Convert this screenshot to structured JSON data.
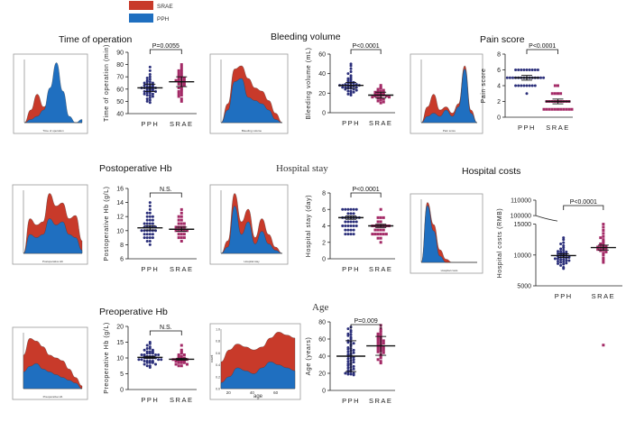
{
  "legend": {
    "items": [
      {
        "label": "SRAE",
        "color": "#c83a2a"
      },
      {
        "label": "PPH",
        "color": "#1f6fc0"
      }
    ]
  },
  "colors": {
    "srae": "#c83a2a",
    "pph": "#1f6fc0",
    "pph_dot": "#2b2f7a",
    "srae_dot": "#a32a66"
  },
  "chart_data": [
    {
      "id": "time",
      "type": "scatter",
      "title": "Time of operation",
      "ylabel": "Time of operation (min)",
      "categories": [
        "PPH",
        "SRAE"
      ],
      "ylim": [
        40,
        90
      ],
      "yticks": [
        40,
        50,
        60,
        70,
        80,
        90
      ],
      "pvalue": "P=0.0055",
      "series": [
        {
          "name": "PPH",
          "values": [
            78,
            75,
            72,
            70,
            69,
            68,
            67,
            66,
            66,
            65,
            65,
            64,
            64,
            63,
            63,
            62,
            62,
            62,
            61,
            61,
            61,
            60,
            60,
            60,
            59,
            59,
            59,
            58,
            58,
            57,
            57,
            56,
            56,
            55,
            55,
            54,
            53,
            52,
            51,
            50,
            49
          ],
          "mean": 61,
          "err": 3
        },
        {
          "name": "SRAE",
          "values": [
            80,
            78,
            76,
            75,
            74,
            73,
            72,
            71,
            70,
            70,
            69,
            68,
            68,
            67,
            67,
            66,
            66,
            65,
            64,
            64,
            63,
            62,
            61,
            60,
            59,
            58,
            57,
            56,
            55,
            54,
            52,
            50
          ],
          "mean": 66,
          "err": 4
        }
      ]
    },
    {
      "id": "bleeding",
      "type": "scatter",
      "title": "Bleeding volume",
      "ylabel": "Bleeding volume (mL)",
      "categories": [
        "PPH",
        "SRAE"
      ],
      "ylim": [
        0,
        60
      ],
      "yticks": [
        0,
        20,
        40,
        60
      ],
      "pvalue": "P<0.0001",
      "series": [
        {
          "name": "PPH",
          "values": [
            50,
            48,
            45,
            42,
            40,
            38,
            36,
            35,
            34,
            33,
            32,
            31,
            31,
            30,
            30,
            30,
            29,
            29,
            28,
            28,
            28,
            27,
            27,
            27,
            26,
            26,
            26,
            25,
            25,
            24,
            24,
            23,
            22,
            22,
            21,
            20,
            19,
            18
          ],
          "mean": 28,
          "err": 3
        },
        {
          "name": "SRAE",
          "values": [
            28,
            26,
            25,
            24,
            23,
            22,
            22,
            21,
            21,
            20,
            20,
            19,
            19,
            18,
            18,
            18,
            17,
            17,
            16,
            16,
            15,
            15,
            14,
            13,
            12,
            11,
            10
          ],
          "mean": 18,
          "err": 3
        }
      ]
    },
    {
      "id": "pain",
      "type": "scatter",
      "title": "Pain score",
      "ylabel": "Pain score",
      "categories": [
        "PPH",
        "SRAE"
      ],
      "ylim": [
        0,
        8
      ],
      "yticks": [
        0,
        2,
        4,
        6,
        8
      ],
      "pvalue": "P<0.0001",
      "series": [
        {
          "name": "PPH",
          "values": [
            6,
            6,
            6,
            6,
            6,
            6,
            6,
            6,
            6,
            5,
            5,
            5,
            5,
            5,
            5,
            5,
            5,
            5,
            5,
            5,
            5,
            5,
            5,
            4,
            4,
            4,
            4,
            4,
            4,
            4,
            4,
            3
          ],
          "mean": 5,
          "err": 0.3
        },
        {
          "name": "SRAE",
          "values": [
            4,
            4,
            3,
            3,
            3,
            3,
            2,
            2,
            2,
            2,
            2,
            2,
            2,
            2,
            2,
            1,
            1,
            1,
            1,
            1,
            1,
            1,
            1,
            1,
            1,
            1
          ],
          "mean": 2,
          "err": 0.3
        }
      ]
    },
    {
      "id": "posthb",
      "type": "scatter",
      "title": "Postoperative Hb",
      "ylabel": "Postoperative Hb (g/L)",
      "categories": [
        "PPH",
        "SRAE"
      ],
      "ylim": [
        6,
        16
      ],
      "yticks": [
        6,
        8,
        10,
        12,
        14,
        16
      ],
      "pvalue": "N.S.",
      "series": [
        {
          "name": "PPH",
          "values": [
            14,
            13.5,
            13,
            12.5,
            12.5,
            12,
            12,
            12,
            11.5,
            11.5,
            11.5,
            11,
            11,
            11,
            11,
            10.5,
            10.5,
            10.5,
            10.5,
            10.5,
            10,
            10,
            10,
            10,
            10,
            10,
            9.5,
            9.5,
            9.5,
            9.5,
            9,
            9,
            9,
            9,
            8.5,
            8.5,
            8
          ],
          "mean": 10.4,
          "err": 0.3
        },
        {
          "name": "SRAE",
          "values": [
            13,
            12.5,
            12,
            12,
            11.5,
            11.5,
            11,
            11,
            11,
            10.5,
            10.5,
            10.5,
            10.5,
            10,
            10,
            10,
            10,
            10,
            9.5,
            9.5,
            9.5,
            9,
            9,
            9,
            8.5
          ],
          "mean": 10.2,
          "err": 0.3
        }
      ]
    },
    {
      "id": "stay",
      "type": "scatter",
      "title": "Hospital stay",
      "ylabel": "Hospital stay (day)",
      "categories": [
        "PPH",
        "SRAE"
      ],
      "ylim": [
        0,
        8
      ],
      "yticks": [
        0,
        2,
        4,
        6,
        8
      ],
      "pvalue": "P<0.0001",
      "series": [
        {
          "name": "PPH",
          "values": [
            6,
            6,
            6,
            6,
            6,
            6,
            5.5,
            5.5,
            5.5,
            5,
            5,
            5,
            5,
            5,
            5,
            5,
            4.5,
            4.5,
            4.5,
            4.5,
            4.5,
            4,
            4,
            4,
            4,
            4,
            4,
            3.5,
            3.5,
            3.5,
            3.5,
            3,
            3,
            3,
            3
          ],
          "mean": 5,
          "err": 0.2
        },
        {
          "name": "SRAE",
          "values": [
            6,
            5,
            5,
            5,
            4.5,
            4.5,
            4,
            4,
            4,
            4,
            4,
            4,
            4,
            3.5,
            3.5,
            3.5,
            3.5,
            3,
            3,
            3,
            3,
            3,
            3,
            2.5,
            2.5,
            2
          ],
          "mean": 4,
          "err": 0.2
        }
      ]
    },
    {
      "id": "costs",
      "type": "scatter",
      "title": "Hospital costs",
      "ylabel": "Hospital costs (RMB)",
      "categories": [
        "PPH",
        "SRAE"
      ],
      "ylim": [
        5000,
        110000
      ],
      "yticks": [
        5000,
        10000,
        15000,
        100000,
        110000
      ],
      "axis_break": [
        15000,
        100000
      ],
      "pvalue": "P<0.0001",
      "series": [
        {
          "name": "PPH",
          "values": [
            12800,
            12500,
            12000,
            11800,
            11500,
            11200,
            11000,
            10800,
            10600,
            10500,
            10400,
            10300,
            10200,
            10100,
            10000,
            9900,
            9800,
            9700,
            9600,
            9500,
            9400,
            9300,
            9200,
            9100,
            9000,
            8900,
            8800,
            8700,
            8600,
            8500,
            8300,
            8000,
            7800,
            9800,
            10200,
            9600,
            9400,
            10600,
            9100
          ],
          "mean": 9900,
          "err": 300
        },
        {
          "name": "SRAE",
          "values": [
            16000,
            15000,
            14500,
            14000,
            13500,
            13000,
            12800,
            12500,
            12200,
            12000,
            11800,
            11600,
            11500,
            11400,
            11300,
            11200,
            11100,
            11000,
            10900,
            10800,
            10700,
            10500,
            10300,
            10000,
            9500,
            9200,
            8800
          ],
          "mean": 11200,
          "err": 400
        }
      ]
    },
    {
      "id": "prehb",
      "type": "scatter",
      "title": "Preoperative Hb",
      "ylabel": "Preoperative Hb (g/L)",
      "categories": [
        "PPH",
        "SRAE"
      ],
      "ylim": [
        0,
        20
      ],
      "yticks": [
        0,
        5,
        10,
        15,
        20
      ],
      "pvalue": "N.S.",
      "series": [
        {
          "name": "PPH",
          "values": [
            15,
            14.5,
            14,
            13.5,
            13,
            13,
            12.5,
            12.5,
            12,
            12,
            12,
            11.5,
            11.5,
            11.5,
            11,
            11,
            11,
            11,
            10.5,
            10.5,
            10.5,
            10.5,
            10,
            10,
            10,
            10,
            10,
            9.5,
            9.5,
            9.5,
            9.5,
            9,
            9,
            9,
            9,
            8.5,
            8.5,
            8.5,
            8,
            8,
            7.5,
            7.5,
            7
          ],
          "mean": 10.2,
          "err": 0.3
        },
        {
          "name": "SRAE",
          "values": [
            14,
            12.5,
            12,
            11.5,
            11,
            11,
            10.5,
            10.5,
            10,
            10,
            10,
            9.5,
            9.5,
            9.5,
            9,
            9,
            9,
            9,
            8.5,
            8.5,
            8.5,
            8,
            8,
            7.5,
            7.5
          ],
          "mean": 9.6,
          "err": 0.3
        }
      ]
    },
    {
      "id": "age",
      "type": "scatter",
      "title": "Age",
      "ylabel": "Age (years)",
      "categories": [
        "PPH",
        "SRAE"
      ],
      "ylim": [
        0,
        80
      ],
      "yticks": [
        0,
        20,
        40,
        60,
        80
      ],
      "pvalue": "P=0.009",
      "series": [
        {
          "name": "PPH",
          "values": [
            74,
            72,
            70,
            68,
            66,
            65,
            64,
            62,
            60,
            58,
            57,
            56,
            55,
            54,
            52,
            50,
            49,
            48,
            47,
            46,
            45,
            44,
            43,
            42,
            41,
            40,
            39,
            38,
            37,
            36,
            35,
            34,
            33,
            32,
            31,
            30,
            29,
            28,
            27,
            26,
            25,
            24,
            23,
            22,
            21,
            20,
            20,
            19,
            19,
            18
          ],
          "mean": 40,
          "err": 18,
          "sd": true
        },
        {
          "name": "SRAE",
          "values": [
            76,
            72,
            70,
            68,
            66,
            65,
            64,
            62,
            61,
            60,
            59,
            58,
            57,
            56,
            55,
            54,
            53,
            52,
            51,
            50,
            49,
            48,
            47,
            46,
            45,
            44,
            42,
            40,
            38,
            36,
            34,
            32
          ],
          "mean": 52,
          "err": 11,
          "sd": true
        }
      ]
    }
  ],
  "density_plots": [
    {
      "id": "d-time",
      "x_label": "Time of operation",
      "peak_group": "PPH"
    },
    {
      "id": "d-bleed",
      "x_label": "Bleeding volume",
      "peak_group": "SRAE"
    },
    {
      "id": "d-pain",
      "x_label": "Pain score",
      "peak_group": "PPH"
    },
    {
      "id": "d-posthb",
      "x_label": "Postoperative Hb",
      "peak_group": "SRAE"
    },
    {
      "id": "d-stay",
      "x_label": "Hospital stay",
      "peak_group": "SRAE"
    },
    {
      "id": "d-costs",
      "x_label": "Hospital costs",
      "peak_group": "PPH"
    },
    {
      "id": "d-prehb",
      "x_label": "Preoperative Hb",
      "peak_group": "SRAE"
    },
    {
      "id": "d-age",
      "x_label": "age",
      "peak_group": "SRAE",
      "xticks": [
        "20",
        "40",
        "60"
      ],
      "yticks": [
        "0.0",
        "0.2",
        "0.4",
        "0.6",
        "0.8",
        "1.0"
      ],
      "ylabel": "count"
    }
  ]
}
